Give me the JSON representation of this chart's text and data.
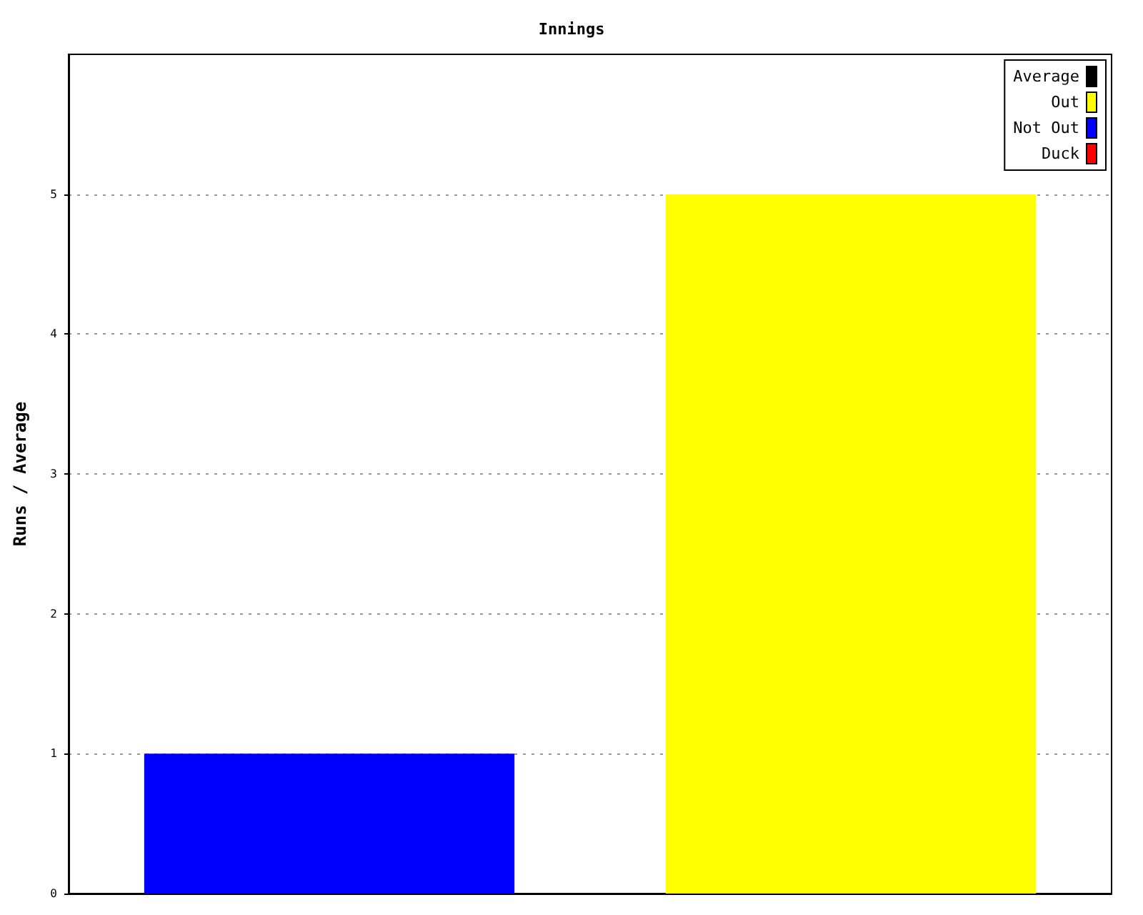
{
  "chart_data": {
    "type": "bar",
    "title": "Innings",
    "ylabel": "Runs / Average",
    "categories": [
      null,
      null
    ],
    "series": [
      {
        "name": "Average",
        "color": "#000000",
        "values": [
          null,
          null
        ]
      },
      {
        "name": "Out",
        "color": "#ffff00",
        "values": [
          null,
          5
        ]
      },
      {
        "name": "Not Out",
        "color": "#0000ff",
        "values": [
          1,
          null
        ]
      },
      {
        "name": "Duck",
        "color": "#ff0000",
        "values": [
          null,
          null
        ]
      }
    ],
    "stacked": true,
    "ylim": [
      0,
      6
    ],
    "yticks": [
      0,
      1,
      2,
      3,
      4,
      5
    ],
    "grid": "y",
    "legend": "top right"
  }
}
